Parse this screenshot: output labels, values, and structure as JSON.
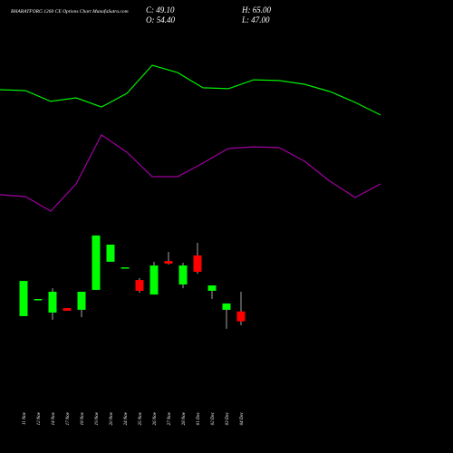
{
  "chart_data": {
    "type": "candlestick",
    "title": "BHARATFORG 1260 CE Options Chart MunafaSutra.com",
    "ohlc_labels": [
      "C: 49.10",
      "O: 54.40",
      "H: 65.00",
      "L: 47.00"
    ],
    "categories": [
      "11 Nov",
      "12 Nov",
      "14 Nov",
      "17 Nov",
      "18 Nov",
      "19 Nov",
      "20 Nov",
      "24 Nov",
      "25 Nov",
      "26 Nov",
      "27 Nov",
      "28 Nov",
      "01 Dec",
      "02 Dec",
      "03 Dec",
      "04 Dec"
    ],
    "open": [
      51.9,
      61.1,
      53.8,
      56.2,
      55.3,
      66.0,
      81.1,
      78.1,
      71.3,
      63.5,
      81.5,
      68.9,
      84.5,
      65.5,
      55.3,
      54.4
    ],
    "high": [
      70.8,
      61.1,
      66.9,
      56.2,
      65.0,
      95.2,
      90.3,
      78.1,
      72.3,
      81.1,
      86.4,
      80.6,
      91.3,
      68.4,
      58.7,
      65.0
    ],
    "low": [
      51.9,
      61.1,
      49.9,
      54.8,
      51.4,
      66.0,
      81.1,
      78.1,
      64.5,
      63.5,
      79.6,
      66.9,
      74.7,
      61.1,
      45.1,
      47.0
    ],
    "close": [
      70.8,
      61.1,
      65.0,
      54.8,
      65.0,
      95.2,
      90.3,
      78.1,
      65.5,
      79.1,
      80.1,
      79.1,
      75.7,
      68.4,
      58.7,
      49.1
    ],
    "up_color": "#00ff00",
    "down_color": "#ff0000",
    "lines": [
      {
        "color": "#00ee00",
        "values": [
          173.5,
          173.0,
          167.2,
          169.1,
          164.2,
          171.5,
          186.6,
          182.7,
          174.5,
          174.0,
          178.8,
          178.4,
          176.4,
          172.5,
          166.7,
          159.9
        ]
      },
      {
        "color": "#a000a0",
        "values": [
          117.1,
          116.1,
          108.3,
          122.9,
          149.2,
          139.9,
          126.8,
          126.8,
          134.1,
          141.9,
          142.8,
          142.4,
          135.1,
          124.4,
          115.6,
          122.9
        ]
      }
    ],
    "ylim": [
      40,
      200
    ]
  }
}
